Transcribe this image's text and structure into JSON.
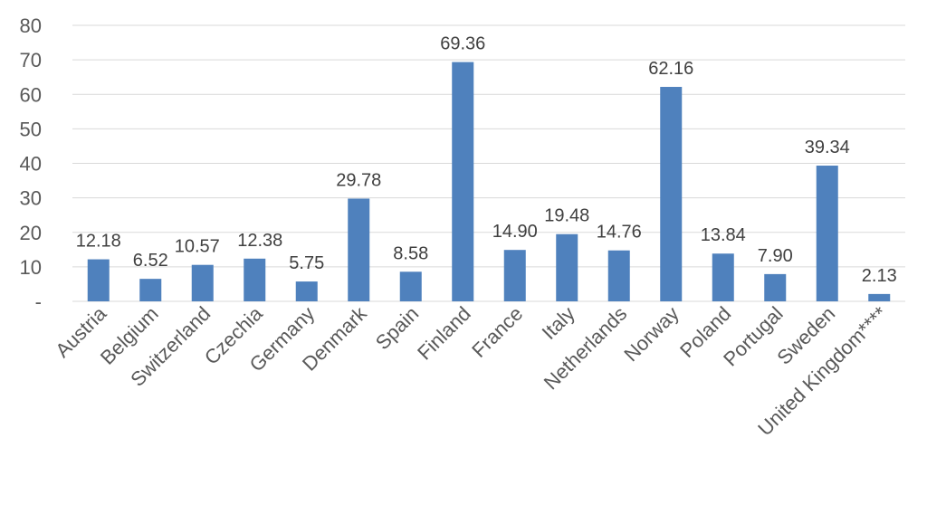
{
  "chart_data": {
    "type": "bar",
    "categories": [
      "Austria",
      "Belgium",
      "Switzerland",
      "Czechia",
      "Germany",
      "Denmark",
      "Spain",
      "Finland",
      "France",
      "Italy",
      "Netherlands",
      "Norway",
      "Poland",
      "Portugal",
      "Sweden",
      "United Kingdom****"
    ],
    "values": [
      12.18,
      6.52,
      10.57,
      12.38,
      5.75,
      29.78,
      8.58,
      69.36,
      14.9,
      19.48,
      14.76,
      62.16,
      13.84,
      7.9,
      39.34,
      2.13
    ],
    "data_labels": [
      "12.18",
      "6.52",
      "10.57",
      "12.38",
      "5.75",
      "29.78",
      "8.58",
      "69.36",
      "14.90",
      "19.48",
      "14.76",
      "62.16",
      "13.84",
      "7.90",
      "39.34",
      "2.13"
    ],
    "y_ticks": [
      0,
      10,
      20,
      30,
      40,
      50,
      60,
      70,
      80
    ],
    "y_tick_labels": [
      "-",
      "10",
      "20",
      "30",
      "40",
      "50",
      "60",
      "70",
      "80"
    ],
    "ylim": [
      0,
      80
    ],
    "title": "",
    "xlabel": "",
    "ylabel": "",
    "grid": true,
    "legend": "none",
    "bar_color": "#4f81bd",
    "grid_color": "#d9d9d9"
  }
}
